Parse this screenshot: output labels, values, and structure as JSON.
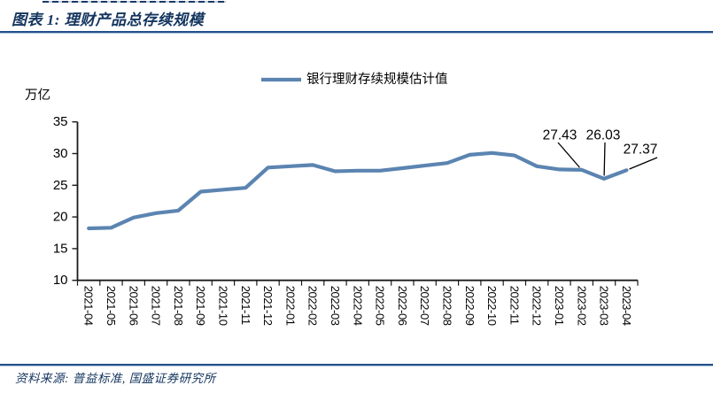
{
  "header": {
    "title": "图表 1:  理财产品总存续规模"
  },
  "footer": {
    "source": "资料来源: 普益标准, 国盛证券研究所"
  },
  "colors": {
    "accent_text": "#14355f",
    "rule_blue": "#24508c",
    "series_line": "#5B84B1",
    "axis": "#1a1a1a"
  },
  "chart_data": {
    "type": "line",
    "title": "理财产品总存续规模",
    "ylabel": "万亿",
    "xlabel": "",
    "grid": false,
    "legend_position": "top-center",
    "ylim": [
      10,
      35
    ],
    "yticks": [
      10,
      15,
      20,
      25,
      30,
      35
    ],
    "categories": [
      "2021-04",
      "2021-05",
      "2021-06",
      "2021-07",
      "2021-08",
      "2021-09",
      "2021-10",
      "2021-11",
      "2021-12",
      "2022-01",
      "2022-02",
      "2022-03",
      "2022-04",
      "2022-05",
      "2022-06",
      "2022-07",
      "2022-08",
      "2022-09",
      "2022-10",
      "2022-11",
      "2022-12",
      "2023-01",
      "2023-02",
      "2023-03",
      "2023-04"
    ],
    "series": [
      {
        "name": "银行理财存续规模估计值",
        "values": [
          18.2,
          18.3,
          19.9,
          20.6,
          21.0,
          24.0,
          24.3,
          24.6,
          27.8,
          28.0,
          28.2,
          27.2,
          27.3,
          27.3,
          27.7,
          28.1,
          28.5,
          29.8,
          30.1,
          29.7,
          28.0,
          27.5,
          27.43,
          26.03,
          27.37
        ]
      }
    ],
    "annotations": [
      {
        "text": "27.43",
        "category": "2023-02"
      },
      {
        "text": "26.03",
        "category": "2023-03"
      },
      {
        "text": "27.37",
        "category": "2023-04"
      }
    ]
  }
}
